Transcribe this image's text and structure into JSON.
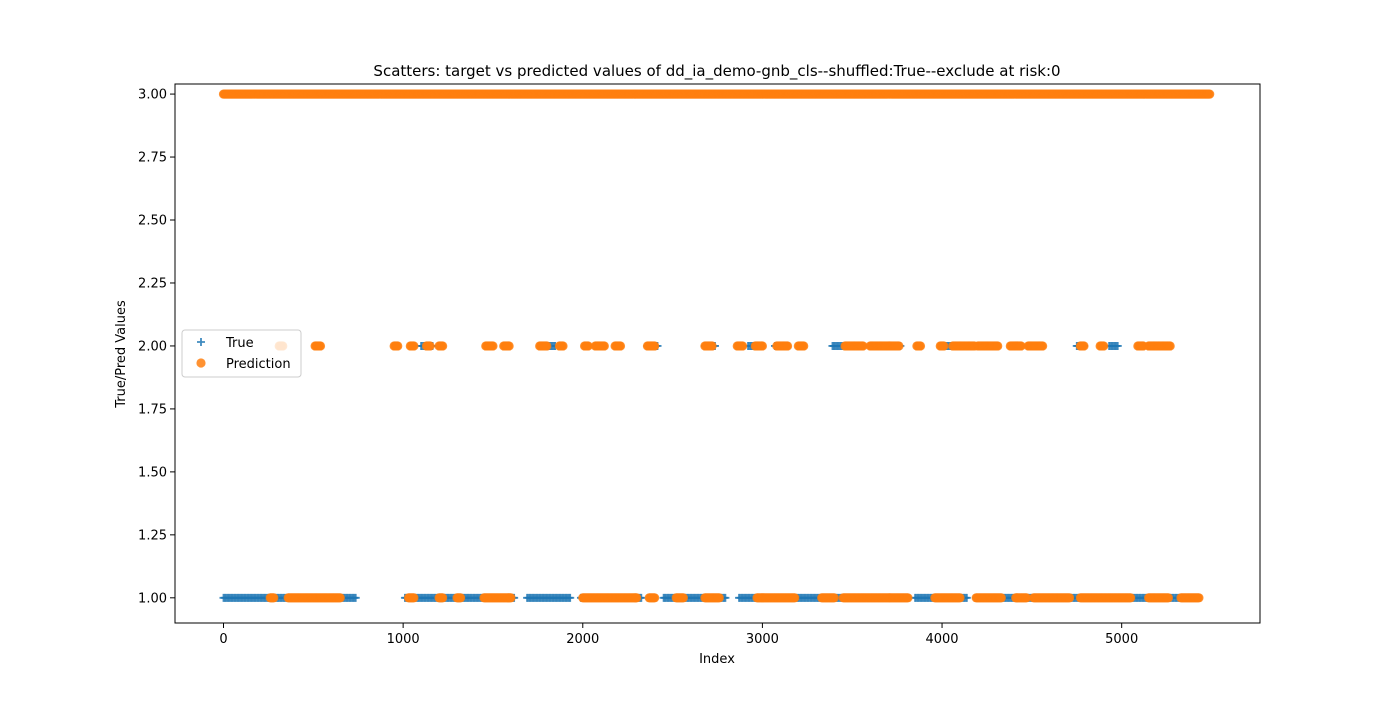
{
  "chart_data": {
    "type": "scatter",
    "title": "Scatters: target vs predicted values of dd_ia_demo-gnb_cls--shuffled:True--exclude at risk:0",
    "xlabel": "Index",
    "ylabel": "True/Pred Values",
    "xlim": [
      -270,
      5770
    ],
    "ylim": [
      0.9,
      3.04
    ],
    "grid": false,
    "legend_position": "center-left",
    "x_ticks": [
      0,
      1000,
      2000,
      3000,
      4000,
      5000
    ],
    "x_tick_labels": [
      "0",
      "1000",
      "2000",
      "3000",
      "4000",
      "5000"
    ],
    "y_ticks": [
      1.0,
      1.25,
      1.5,
      1.75,
      2.0,
      2.25,
      2.5,
      2.75,
      3.0
    ],
    "y_tick_labels": [
      "1.00",
      "1.25",
      "1.50",
      "1.75",
      "2.00",
      "2.25",
      "2.50",
      "2.75",
      "3.00"
    ],
    "series": [
      {
        "name": "True",
        "marker": "plus",
        "color": "#1f77b4",
        "y_levels": [
          {
            "y": 1.0,
            "x_ranges": [
              [
                0,
                740
              ],
              [
                1010,
                1620
              ],
              [
                1690,
                1930
              ],
              [
                1990,
                2330
              ],
              [
                2450,
                2800
              ],
              [
                2870,
                3790
              ],
              [
                3850,
                4140
              ],
              [
                4190,
                5360
              ]
            ]
          },
          {
            "y": 2.0,
            "x_ranges": [
              [
                1100,
                1170
              ],
              [
                1790,
                1850
              ],
              [
                2360,
                2420
              ],
              [
                2680,
                2740
              ],
              [
                2920,
                2990
              ],
              [
                3070,
                3120
              ],
              [
                3390,
                3450
              ],
              [
                3680,
                3770
              ],
              [
                4010,
                4060
              ],
              [
                4750,
                4790
              ],
              [
                4930,
                4980
              ]
            ]
          }
        ]
      },
      {
        "name": "Prediction",
        "marker": "circle",
        "color": "#ff7f0e",
        "y_levels": [
          {
            "y": 3.0,
            "x_ranges": [
              [
                0,
                5490
              ]
            ]
          },
          {
            "y": 2.0,
            "x_ranges": [
              [
                310,
                330
              ],
              [
                510,
                540
              ],
              [
                950,
                970
              ],
              [
                1040,
                1060
              ],
              [
                1130,
                1150
              ],
              [
                1200,
                1220
              ],
              [
                1460,
                1500
              ],
              [
                1560,
                1590
              ],
              [
                1760,
                1800
              ],
              [
                1870,
                1890
              ],
              [
                2010,
                2030
              ],
              [
                2070,
                2120
              ],
              [
                2180,
                2210
              ],
              [
                2360,
                2400
              ],
              [
                2680,
                2720
              ],
              [
                2860,
                2890
              ],
              [
                2960,
                3000
              ],
              [
                3080,
                3140
              ],
              [
                3200,
                3230
              ],
              [
                3460,
                3560
              ],
              [
                3600,
                3760
              ],
              [
                3860,
                3880
              ],
              [
                3990,
                4010
              ],
              [
                4060,
                4180
              ],
              [
                4200,
                4310
              ],
              [
                4380,
                4440
              ],
              [
                4480,
                4560
              ],
              [
                4770,
                4790
              ],
              [
                4880,
                4900
              ],
              [
                5090,
                5120
              ],
              [
                5150,
                5270
              ]
            ]
          },
          {
            "y": 1.0,
            "x_ranges": [
              [
                260,
                280
              ],
              [
                360,
                650
              ],
              [
                1030,
                1060
              ],
              [
                1200,
                1220
              ],
              [
                1300,
                1320
              ],
              [
                1450,
                1600
              ],
              [
                2000,
                2300
              ],
              [
                2370,
                2400
              ],
              [
                2520,
                2560
              ],
              [
                2680,
                2760
              ],
              [
                2970,
                3180
              ],
              [
                3330,
                3400
              ],
              [
                3450,
                3810
              ],
              [
                3960,
                4100
              ],
              [
                4190,
                4330
              ],
              [
                4410,
                4470
              ],
              [
                4510,
                4710
              ],
              [
                4770,
                5050
              ],
              [
                5150,
                5260
              ],
              [
                5330,
                5430
              ]
            ]
          }
        ]
      }
    ]
  }
}
